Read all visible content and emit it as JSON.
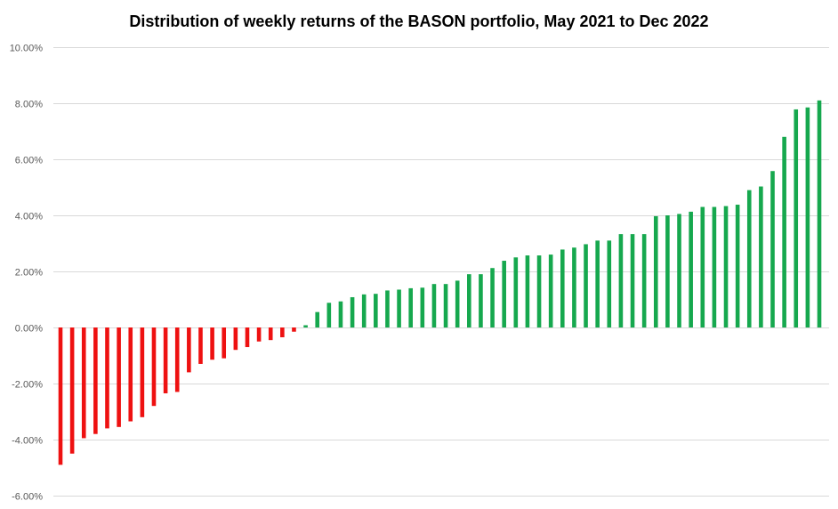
{
  "chart_data": {
    "type": "bar",
    "title": "Distribution  of weekly returns of the BASON portfolio, May 2021 to Dec 2022",
    "xlabel": "",
    "ylabel": "",
    "ylim": [
      -6,
      10
    ],
    "y_tick_step": 2,
    "y_tick_labels": [
      "10.00%",
      "8.00%",
      "6.00%",
      "4.00%",
      "2.00%",
      "0.00%",
      "-2.00%",
      "-4.00%",
      "-6.00%"
    ],
    "grid": true,
    "legend": "none",
    "sorted": "ascending",
    "colors": {
      "negative": "#ee1111",
      "positive": "#16a84e"
    },
    "unit": "%",
    "values": [
      -4.9,
      -4.5,
      -3.95,
      -3.8,
      -3.6,
      -3.55,
      -3.35,
      -3.2,
      -2.8,
      -2.35,
      -2.3,
      -1.6,
      -1.3,
      -1.15,
      -1.1,
      -0.8,
      -0.7,
      -0.5,
      -0.45,
      -0.35,
      -0.15,
      0.08,
      0.55,
      0.88,
      0.93,
      1.08,
      1.18,
      1.2,
      1.32,
      1.35,
      1.4,
      1.42,
      1.55,
      1.55,
      1.67,
      1.9,
      1.9,
      2.12,
      2.38,
      2.5,
      2.57,
      2.57,
      2.6,
      2.78,
      2.85,
      2.97,
      3.1,
      3.1,
      3.33,
      3.33,
      3.33,
      3.97,
      4.0,
      4.05,
      4.13,
      4.3,
      4.3,
      4.33,
      4.38,
      4.9,
      5.03,
      5.58,
      6.8,
      7.78,
      7.85,
      8.1
    ]
  }
}
